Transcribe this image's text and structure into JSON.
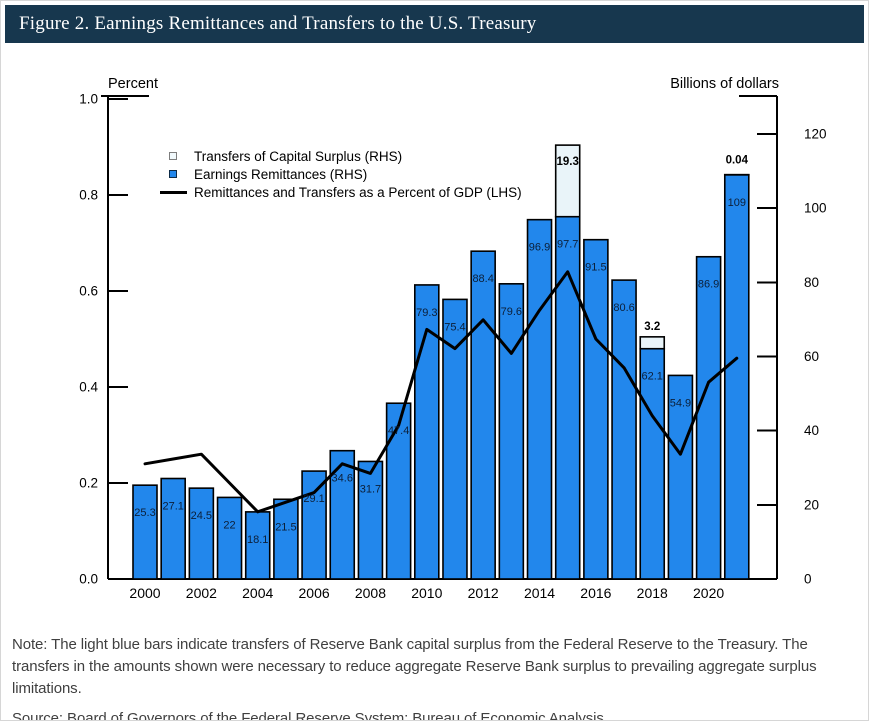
{
  "header": {
    "title": "Figure 2. Earnings Remittances and Transfers to the U.S. Treasury"
  },
  "legend": {
    "items": [
      {
        "label": "Transfers of Capital Surplus (RHS)",
        "marker": "light-square"
      },
      {
        "label": "Earnings Remittances (RHS)",
        "marker": "blue-square"
      },
      {
        "label": "Remittances and Transfers as a Percent of GDP (LHS)",
        "marker": "black-line"
      }
    ]
  },
  "chart_data": {
    "type": "combo-bar-line",
    "categories": [
      2000,
      2001,
      2002,
      2003,
      2004,
      2005,
      2006,
      2007,
      2008,
      2009,
      2010,
      2011,
      2012,
      2013,
      2014,
      2015,
      2016,
      2017,
      2018,
      2019,
      2020,
      2021
    ],
    "x_tick_labels": [
      "2000",
      "2002",
      "2004",
      "2006",
      "2008",
      "2010",
      "2012",
      "2014",
      "2016",
      "2018",
      "2020"
    ],
    "left_axis": {
      "title": "Percent",
      "min": 0,
      "max": 1.0,
      "ticks": [
        0,
        0.2,
        0.4,
        0.6,
        0.8,
        1.0
      ],
      "tick_labels": [
        "0.0",
        "0.2",
        "0.4",
        "0.6",
        "0.8",
        "1.0"
      ]
    },
    "right_axis": {
      "title": "Billions of dollars",
      "min": 0,
      "max": 130,
      "ticks": [
        0,
        20,
        40,
        60,
        80,
        100,
        120
      ],
      "tick_labels": [
        "0",
        "20",
        "40",
        "60",
        "80",
        "100",
        "120"
      ]
    },
    "grid": false,
    "legend_position": "top-left",
    "series": [
      {
        "name": "Earnings Remittances (RHS)",
        "type": "bar",
        "axis": "right",
        "values": [
          25.3,
          27.1,
          24.5,
          22,
          18.1,
          21.5,
          29.1,
          34.6,
          31.7,
          47.4,
          79.3,
          75.4,
          88.4,
          79.6,
          96.9,
          97.7,
          91.5,
          80.6,
          62.1,
          54.9,
          86.9,
          109
        ],
        "labels": [
          "25.3",
          "27.1",
          "24.5",
          "22",
          "18.1",
          "21.5",
          "29.1",
          "34.6",
          "31.7",
          "47.4",
          "79.3",
          "75.4",
          "88.4",
          "79.6",
          "96.9",
          "97.7",
          "91.5",
          "80.6",
          "62.1",
          "54.9",
          "86.9",
          "109"
        ]
      },
      {
        "name": "Transfers of Capital Surplus (RHS)",
        "type": "bar-stacked",
        "axis": "right",
        "points": [
          {
            "year": 2015,
            "value": 19.3,
            "label": "19.3",
            "label_pos": "inside"
          },
          {
            "year": 2018,
            "value": 3.2,
            "label": "3.2",
            "label_pos": "above"
          },
          {
            "year": 2021,
            "value": 0.04,
            "label": "0.04",
            "label_pos": "above"
          }
        ]
      },
      {
        "name": "Remittances and Transfers as a Percent of GDP (LHS)",
        "type": "line",
        "axis": "left",
        "values": [
          0.24,
          0.25,
          0.26,
          0.2,
          0.14,
          0.16,
          0.18,
          0.24,
          0.22,
          0.32,
          0.52,
          0.48,
          0.54,
          0.47,
          0.56,
          0.64,
          0.5,
          0.44,
          0.34,
          0.26,
          0.41,
          0.46
        ]
      }
    ]
  },
  "note": "Note: The light blue bars indicate transfers of Reserve Bank capital surplus from the Federal Reserve to the Treasury. The transfers in the amounts shown were necessary to reduce aggregate Reserve Bank surplus to prevailing aggregate surplus limitations.",
  "source": "Source: Board of Governors of the Federal Reserve System; Bureau of Economic Analysis",
  "colors": {
    "header_bg": "#17374e",
    "header_text": "#ffffff",
    "bar_blue": "#2287ec",
    "bar_light_blue": "#e9f4f9",
    "bar_border": "#000000",
    "line": "#000000",
    "bar_label": "#0c1f38",
    "axis": "#000000",
    "note_text": "#3f3f3f"
  }
}
